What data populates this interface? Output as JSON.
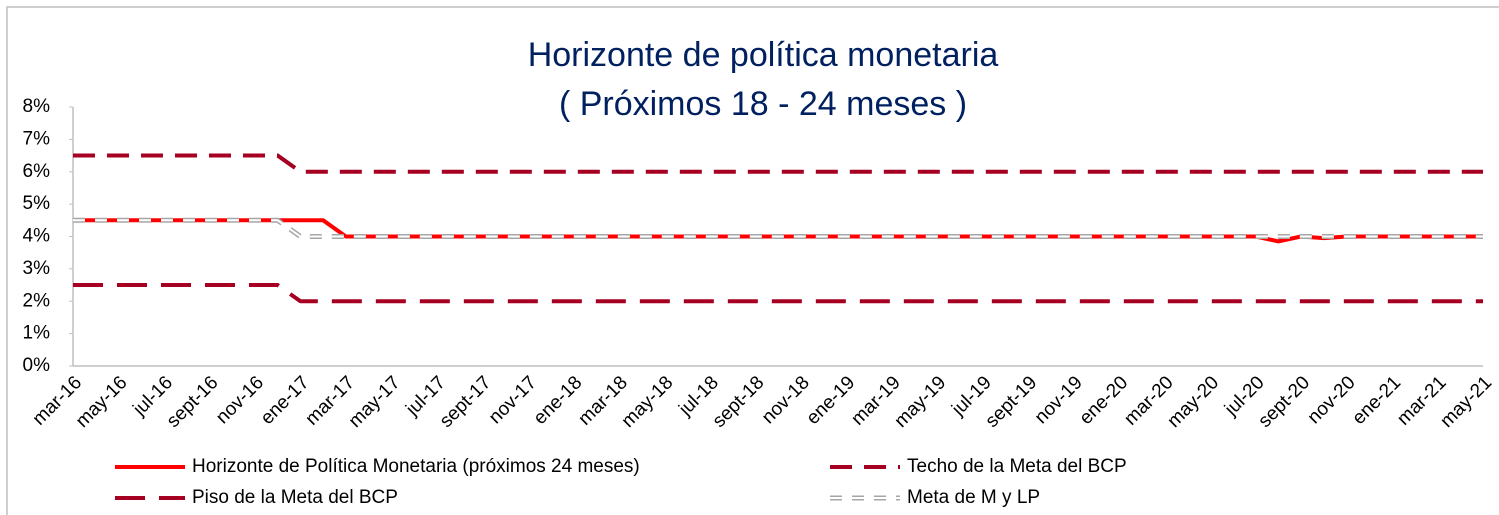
{
  "chart_data": {
    "type": "line",
    "title": "Horizonte de política monetaria",
    "subtitle": "( Próximos 18 - 24 meses )",
    "categories": [
      "mar-16",
      null,
      "may-16",
      null,
      "jul-16",
      null,
      "sept-16",
      null,
      "nov-16",
      null,
      "ene-17",
      null,
      "mar-17",
      null,
      "may-17",
      null,
      "jul-17",
      null,
      "sept-17",
      null,
      "nov-17",
      null,
      "ene-18",
      null,
      "mar-18",
      null,
      "may-18",
      null,
      "jul-18",
      null,
      "sept-18",
      null,
      "nov-18",
      null,
      "ene-19",
      null,
      "mar-19",
      null,
      "may-19",
      null,
      "jul-19",
      null,
      "sept-19",
      null,
      "nov-19",
      null,
      "ene-20",
      null,
      "mar-20",
      null,
      "may-20",
      null,
      "jul-20",
      null,
      "sept-20",
      null,
      "nov-20",
      null,
      "ene-21",
      null,
      "mar-21",
      null,
      "may-21"
    ],
    "series": [
      {
        "name": "Horizonte de Política Monetaria (próximos 24 meses)",
        "color": "#ff0000",
        "line_style": "solid",
        "values": [
          4.5,
          4.5,
          4.5,
          4.5,
          4.5,
          4.5,
          4.5,
          4.5,
          4.5,
          4.5,
          4.5,
          4.5,
          4,
          4,
          4,
          4,
          4,
          4,
          4,
          4,
          4,
          4,
          4,
          4,
          4,
          4,
          4,
          4,
          4,
          4,
          4,
          4,
          4,
          4,
          4,
          4,
          4,
          4,
          4,
          4,
          4,
          4,
          4,
          4,
          4,
          4,
          4,
          4,
          4,
          4,
          4,
          4,
          4,
          3.85,
          4,
          3.95,
          4,
          4,
          4,
          4,
          4,
          4,
          4
        ]
      },
      {
        "name": "Techo de la Meta del BCP",
        "color": "#a50021",
        "line_style": "dashed",
        "values": [
          6.5,
          6.5,
          6.5,
          6.5,
          6.5,
          6.5,
          6.5,
          6.5,
          6.5,
          6.5,
          6,
          6,
          6,
          6,
          6,
          6,
          6,
          6,
          6,
          6,
          6,
          6,
          6,
          6,
          6,
          6,
          6,
          6,
          6,
          6,
          6,
          6,
          6,
          6,
          6,
          6,
          6,
          6,
          6,
          6,
          6,
          6,
          6,
          6,
          6,
          6,
          6,
          6,
          6,
          6,
          6,
          6,
          6,
          6,
          6,
          6,
          6,
          6,
          6,
          6,
          6,
          6,
          6
        ]
      },
      {
        "name": "Piso de la Meta del BCP",
        "color": "#a50021",
        "line_style": "long-dashed",
        "values": [
          2.5,
          2.5,
          2.5,
          2.5,
          2.5,
          2.5,
          2.5,
          2.5,
          2.5,
          2.5,
          2,
          2,
          2,
          2,
          2,
          2,
          2,
          2,
          2,
          2,
          2,
          2,
          2,
          2,
          2,
          2,
          2,
          2,
          2,
          2,
          2,
          2,
          2,
          2,
          2,
          2,
          2,
          2,
          2,
          2,
          2,
          2,
          2,
          2,
          2,
          2,
          2,
          2,
          2,
          2,
          2,
          2,
          2,
          2,
          2,
          2,
          2,
          2,
          2,
          2,
          2,
          2,
          2
        ]
      },
      {
        "name": "Meta de M y LP",
        "color": "#a6a6a6",
        "line_style": "outlined-dashed",
        "values": [
          4.5,
          4.5,
          4.5,
          4.5,
          4.5,
          4.5,
          4.5,
          4.5,
          4.5,
          4.5,
          4,
          4,
          4,
          4,
          4,
          4,
          4,
          4,
          4,
          4,
          4,
          4,
          4,
          4,
          4,
          4,
          4,
          4,
          4,
          4,
          4,
          4,
          4,
          4,
          4,
          4,
          4,
          4,
          4,
          4,
          4,
          4,
          4,
          4,
          4,
          4,
          4,
          4,
          4,
          4,
          4,
          4,
          4,
          4,
          4,
          4,
          4,
          4,
          4,
          4,
          4,
          4,
          4
        ]
      }
    ],
    "ylim": [
      0,
      8
    ],
    "yticks": [
      {
        "value": 0,
        "label": "0%"
      },
      {
        "value": 1,
        "label": "1%"
      },
      {
        "value": 2,
        "label": "2%"
      },
      {
        "value": 3,
        "label": "3%"
      },
      {
        "value": 4,
        "label": "4%"
      },
      {
        "value": 5,
        "label": "5%"
      },
      {
        "value": 6,
        "label": "6%"
      },
      {
        "value": 7,
        "label": "7%"
      },
      {
        "value": 8,
        "label": "8%"
      }
    ],
    "grid": false
  }
}
